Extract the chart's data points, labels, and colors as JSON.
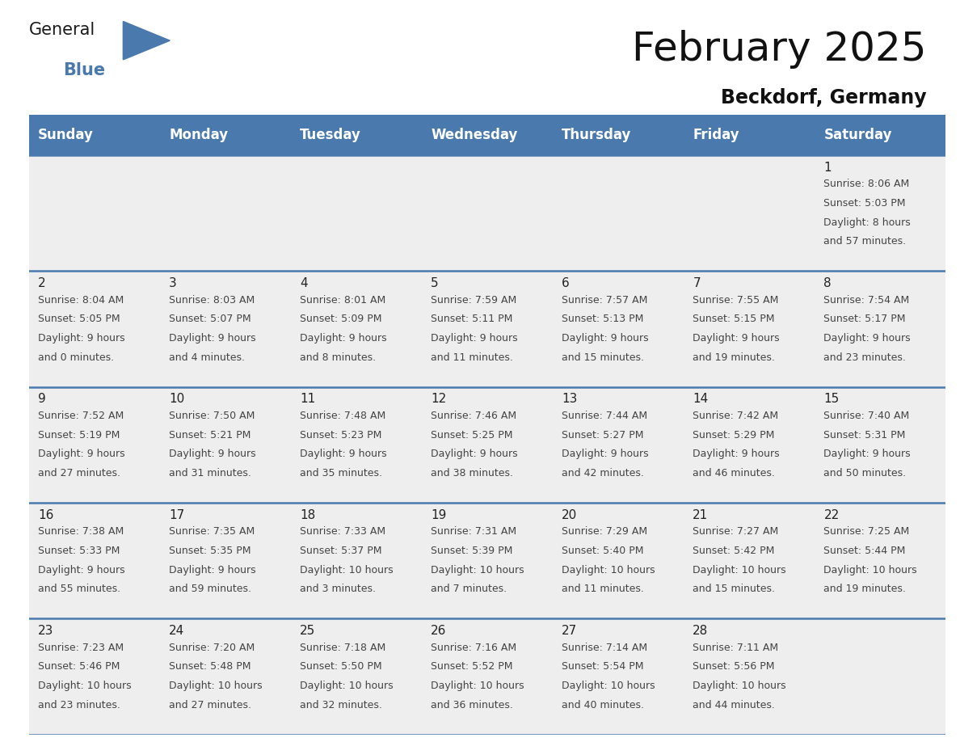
{
  "title": "February 2025",
  "subtitle": "Beckdorf, Germany",
  "days_of_week": [
    "Sunday",
    "Monday",
    "Tuesday",
    "Wednesday",
    "Thursday",
    "Friday",
    "Saturday"
  ],
  "header_bg": "#4a7aad",
  "header_text": "#ffffff",
  "row_bg": "#eeeeee",
  "divider_color": "#4a7aad",
  "text_color": "#444444",
  "day_num_color": "#222222",
  "calendar_data": [
    [
      null,
      null,
      null,
      null,
      null,
      null,
      {
        "day": "1",
        "sunrise": "8:06 AM",
        "sunset": "5:03 PM",
        "daylight_h": "8 hours",
        "daylight_m": "57 minutes"
      }
    ],
    [
      {
        "day": "2",
        "sunrise": "8:04 AM",
        "sunset": "5:05 PM",
        "daylight_h": "9 hours",
        "daylight_m": "0 minutes"
      },
      {
        "day": "3",
        "sunrise": "8:03 AM",
        "sunset": "5:07 PM",
        "daylight_h": "9 hours",
        "daylight_m": "4 minutes"
      },
      {
        "day": "4",
        "sunrise": "8:01 AM",
        "sunset": "5:09 PM",
        "daylight_h": "9 hours",
        "daylight_m": "8 minutes"
      },
      {
        "day": "5",
        "sunrise": "7:59 AM",
        "sunset": "5:11 PM",
        "daylight_h": "9 hours",
        "daylight_m": "11 minutes"
      },
      {
        "day": "6",
        "sunrise": "7:57 AM",
        "sunset": "5:13 PM",
        "daylight_h": "9 hours",
        "daylight_m": "15 minutes"
      },
      {
        "day": "7",
        "sunrise": "7:55 AM",
        "sunset": "5:15 PM",
        "daylight_h": "9 hours",
        "daylight_m": "19 minutes"
      },
      {
        "day": "8",
        "sunrise": "7:54 AM",
        "sunset": "5:17 PM",
        "daylight_h": "9 hours",
        "daylight_m": "23 minutes"
      }
    ],
    [
      {
        "day": "9",
        "sunrise": "7:52 AM",
        "sunset": "5:19 PM",
        "daylight_h": "9 hours",
        "daylight_m": "27 minutes"
      },
      {
        "day": "10",
        "sunrise": "7:50 AM",
        "sunset": "5:21 PM",
        "daylight_h": "9 hours",
        "daylight_m": "31 minutes"
      },
      {
        "day": "11",
        "sunrise": "7:48 AM",
        "sunset": "5:23 PM",
        "daylight_h": "9 hours",
        "daylight_m": "35 minutes"
      },
      {
        "day": "12",
        "sunrise": "7:46 AM",
        "sunset": "5:25 PM",
        "daylight_h": "9 hours",
        "daylight_m": "38 minutes"
      },
      {
        "day": "13",
        "sunrise": "7:44 AM",
        "sunset": "5:27 PM",
        "daylight_h": "9 hours",
        "daylight_m": "42 minutes"
      },
      {
        "day": "14",
        "sunrise": "7:42 AM",
        "sunset": "5:29 PM",
        "daylight_h": "9 hours",
        "daylight_m": "46 minutes"
      },
      {
        "day": "15",
        "sunrise": "7:40 AM",
        "sunset": "5:31 PM",
        "daylight_h": "9 hours",
        "daylight_m": "50 minutes"
      }
    ],
    [
      {
        "day": "16",
        "sunrise": "7:38 AM",
        "sunset": "5:33 PM",
        "daylight_h": "9 hours",
        "daylight_m": "55 minutes"
      },
      {
        "day": "17",
        "sunrise": "7:35 AM",
        "sunset": "5:35 PM",
        "daylight_h": "9 hours",
        "daylight_m": "59 minutes"
      },
      {
        "day": "18",
        "sunrise": "7:33 AM",
        "sunset": "5:37 PM",
        "daylight_h": "10 hours",
        "daylight_m": "3 minutes"
      },
      {
        "day": "19",
        "sunrise": "7:31 AM",
        "sunset": "5:39 PM",
        "daylight_h": "10 hours",
        "daylight_m": "7 minutes"
      },
      {
        "day": "20",
        "sunrise": "7:29 AM",
        "sunset": "5:40 PM",
        "daylight_h": "10 hours",
        "daylight_m": "11 minutes"
      },
      {
        "day": "21",
        "sunrise": "7:27 AM",
        "sunset": "5:42 PM",
        "daylight_h": "10 hours",
        "daylight_m": "15 minutes"
      },
      {
        "day": "22",
        "sunrise": "7:25 AM",
        "sunset": "5:44 PM",
        "daylight_h": "10 hours",
        "daylight_m": "19 minutes"
      }
    ],
    [
      {
        "day": "23",
        "sunrise": "7:23 AM",
        "sunset": "5:46 PM",
        "daylight_h": "10 hours",
        "daylight_m": "23 minutes"
      },
      {
        "day": "24",
        "sunrise": "7:20 AM",
        "sunset": "5:48 PM",
        "daylight_h": "10 hours",
        "daylight_m": "27 minutes"
      },
      {
        "day": "25",
        "sunrise": "7:18 AM",
        "sunset": "5:50 PM",
        "daylight_h": "10 hours",
        "daylight_m": "32 minutes"
      },
      {
        "day": "26",
        "sunrise": "7:16 AM",
        "sunset": "5:52 PM",
        "daylight_h": "10 hours",
        "daylight_m": "36 minutes"
      },
      {
        "day": "27",
        "sunrise": "7:14 AM",
        "sunset": "5:54 PM",
        "daylight_h": "10 hours",
        "daylight_m": "40 minutes"
      },
      {
        "day": "28",
        "sunrise": "7:11 AM",
        "sunset": "5:56 PM",
        "daylight_h": "10 hours",
        "daylight_m": "44 minutes"
      },
      null
    ]
  ],
  "logo_triangle_color": "#4a7aad",
  "title_fontsize": 36,
  "subtitle_fontsize": 17,
  "header_fontsize": 12,
  "daynum_fontsize": 11,
  "info_fontsize": 9
}
